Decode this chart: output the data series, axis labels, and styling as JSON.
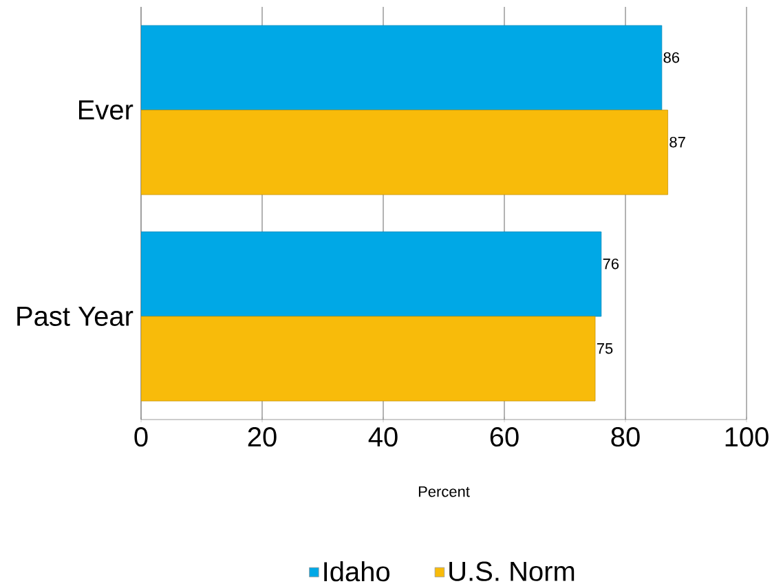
{
  "chart_data": {
    "type": "bar",
    "orientation": "horizontal",
    "categories": [
      "Ever",
      "Past Year"
    ],
    "series": [
      {
        "name": "Idaho",
        "color": "#00a8e6",
        "values": [
          86,
          76
        ]
      },
      {
        "name": "U.S. Norm",
        "color": "#f8bb0a",
        "values": [
          87,
          75
        ]
      }
    ],
    "xlabel": "Percent",
    "xlim": [
      0,
      100
    ],
    "xticks": [
      0,
      20,
      40,
      60,
      80,
      100
    ],
    "grid": "x",
    "legend": "bottom",
    "data_labels": true
  }
}
